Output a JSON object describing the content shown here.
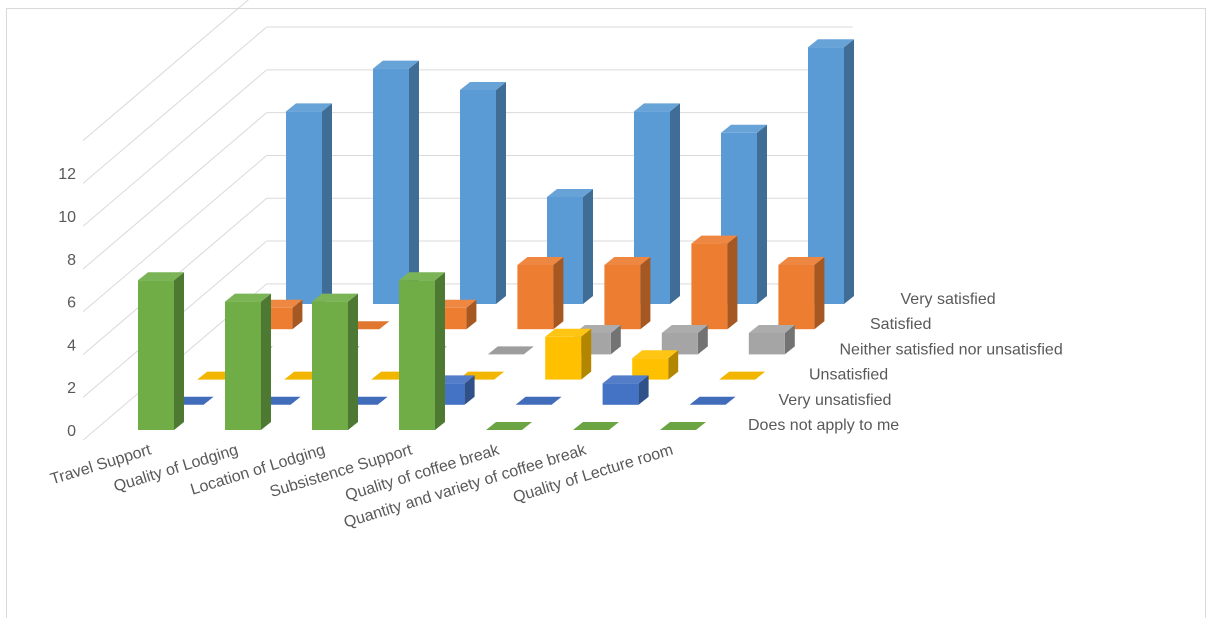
{
  "chart_data": {
    "type": "bar",
    "title": "",
    "xlabel": "",
    "ylabel": "",
    "ylim": [
      0,
      12
    ],
    "yticks": [
      0,
      2,
      4,
      6,
      8,
      10,
      12
    ],
    "grid": true,
    "legend": "none",
    "categories": [
      "Travel Support",
      "Quality of Lodging",
      "Location of Lodging",
      "Subsistence Support",
      "Quality of coffee break",
      "Quantity and variety of coffee break",
      "Quality of Lecture room"
    ],
    "series": [
      {
        "name": "Does not apply to me",
        "color": "#70ad47",
        "values": [
          7,
          6,
          6,
          7,
          0,
          0,
          0
        ]
      },
      {
        "name": "Very unsatisfied",
        "color": "#4472c4",
        "values": [
          0,
          0,
          0,
          1,
          0,
          1,
          0
        ]
      },
      {
        "name": "Unsatisfied",
        "color": "#ffc000",
        "values": [
          0,
          0,
          0,
          0,
          2,
          1,
          0
        ]
      },
      {
        "name": "Neither satisfied nor unsatisfied",
        "color": "#a5a5a5",
        "values": [
          0,
          0,
          0,
          0,
          1,
          1,
          1
        ]
      },
      {
        "name": "Satisfied",
        "color": "#ed7d31",
        "values": [
          1,
          0,
          1,
          3,
          3,
          4,
          3
        ]
      },
      {
        "name": "Very satisfied",
        "color": "#5b9bd5",
        "values": [
          9,
          11,
          10,
          5,
          9,
          8,
          12
        ]
      }
    ]
  }
}
